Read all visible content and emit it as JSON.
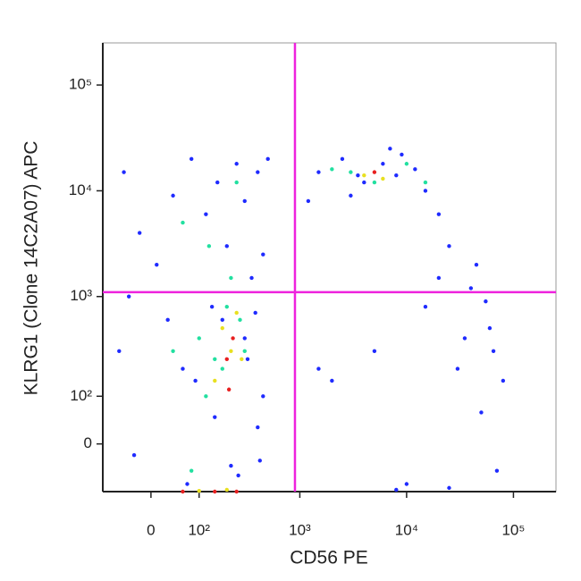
{
  "chart_data": {
    "type": "scatter",
    "xlabel": "CD56 PE",
    "ylabel": "KLRG1 (Clone 14C2A07) APC",
    "xscale": "biexponential",
    "yscale": "biexponential",
    "xlim": [
      -100,
      250000
    ],
    "ylim": [
      -100,
      250000
    ],
    "xticks": [
      0,
      {
        "value": 100,
        "label": "10²"
      },
      {
        "value": 1000,
        "label": "10³"
      },
      {
        "value": 10000,
        "label": "10⁴"
      },
      {
        "value": 100000,
        "label": "10⁵"
      }
    ],
    "yticks": [
      0,
      {
        "value": 100,
        "label": "10²"
      },
      {
        "value": 1000,
        "label": "10³"
      },
      {
        "value": 10000,
        "label": "10⁴"
      },
      {
        "value": 100000,
        "label": "10⁵"
      }
    ],
    "quadrant_x": 900,
    "quadrant_y": 1100,
    "quadrant_color": "#ee22dd",
    "series": [
      {
        "color": "#1f2bff",
        "x": [
          -50,
          -20,
          10,
          40,
          80,
          120,
          160,
          200,
          250,
          300,
          350,
          400,
          450,
          500,
          -60,
          30,
          90,
          150,
          220,
          300,
          380,
          450,
          -30,
          60,
          140,
          260,
          400,
          1500,
          2500,
          4000,
          6000,
          9000,
          15000,
          20000,
          1200,
          3000,
          8000,
          25000,
          40000,
          60000,
          5000,
          15000,
          30000,
          50000,
          70000,
          2000,
          10000,
          35000,
          80000,
          45000,
          20000,
          1500,
          -40,
          70,
          180,
          320,
          420,
          12000,
          3500,
          7000,
          55000,
          65000,
          25000,
          8000
        ],
        "values": [
          15000,
          4000,
          2000,
          9000,
          20000,
          6000,
          12000,
          3000,
          18000,
          8000,
          1500,
          15000,
          2500,
          20000,
          300,
          600,
          150,
          50,
          -40,
          400,
          700,
          100,
          -20,
          200,
          800,
          -60,
          30,
          15000,
          20000,
          12000,
          18000,
          22000,
          10000,
          6000,
          8000,
          9000,
          14000,
          3000,
          1200,
          500,
          300,
          800,
          200,
          60,
          -50,
          150,
          -80,
          400,
          150,
          2000,
          1500,
          200,
          1000,
          -80,
          600,
          250,
          -30,
          16000,
          14000,
          25000,
          900,
          300,
          -90,
          -95
        ]
      },
      {
        "color": "#22e0a0",
        "x": [
          100,
          150,
          200,
          60,
          250,
          180,
          120,
          300,
          3000,
          5000,
          10000,
          2000,
          220,
          80,
          40,
          270,
          130,
          15000
        ],
        "values": [
          400,
          250,
          800,
          5000,
          12000,
          200,
          100,
          300,
          15000,
          12000,
          18000,
          16000,
          1500,
          -50,
          300,
          600,
          3000,
          12000
        ]
      },
      {
        "color": "#e8e020",
        "x": [
          180,
          220,
          150,
          250,
          4000,
          6000,
          200,
          100,
          280
        ],
        "values": [
          500,
          300,
          150,
          700,
          14000,
          13000,
          -95,
          -98,
          250
        ]
      },
      {
        "color": "#e82020",
        "x": [
          230,
          200,
          5000,
          150,
          250,
          60,
          210
        ],
        "values": [
          400,
          250,
          15000,
          -100,
          -100,
          -100,
          120
        ]
      }
    ]
  }
}
